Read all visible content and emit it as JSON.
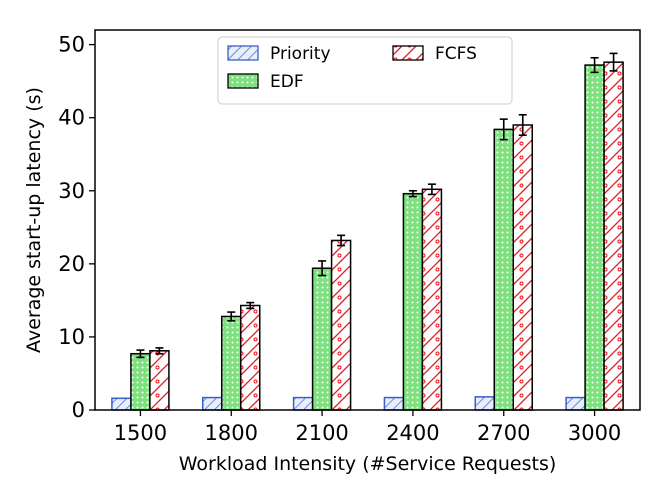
{
  "chart_data": {
    "type": "bar",
    "xlabel": "Workload Intensity (#Service Requests)",
    "ylabel": "Average start-up latency (s)",
    "ylim": [
      0,
      52
    ],
    "yticks": [
      0,
      10,
      20,
      30,
      40,
      50
    ],
    "categories": [
      "1500",
      "1800",
      "2100",
      "2400",
      "2700",
      "3000"
    ],
    "legend": {
      "placement": "top-center",
      "columns": 2
    },
    "grid": false,
    "series": [
      {
        "name": "Priority",
        "values": [
          1.6,
          1.7,
          1.7,
          1.7,
          1.8,
          1.7
        ],
        "errors": [
          0,
          0,
          0,
          0,
          0,
          0
        ],
        "color": "#3b5fc8",
        "fill": "#e8eefc",
        "pattern": "diagonal-hatch"
      },
      {
        "name": "EDF",
        "values": [
          7.7,
          12.8,
          19.4,
          29.6,
          38.4,
          47.2
        ],
        "errors": [
          0.5,
          0.6,
          1.0,
          0.4,
          1.4,
          1.0
        ],
        "color": "#2ca02c",
        "fill": "#7ee07e",
        "pattern": "dots"
      },
      {
        "name": "FCFS",
        "values": [
          8.1,
          14.3,
          23.2,
          30.2,
          39.0,
          47.6
        ],
        "errors": [
          0.4,
          0.4,
          0.7,
          0.7,
          1.4,
          1.2
        ],
        "color": "#e8141c",
        "fill": "#ffffff",
        "pattern": "backslash-hatch-circles"
      }
    ]
  }
}
